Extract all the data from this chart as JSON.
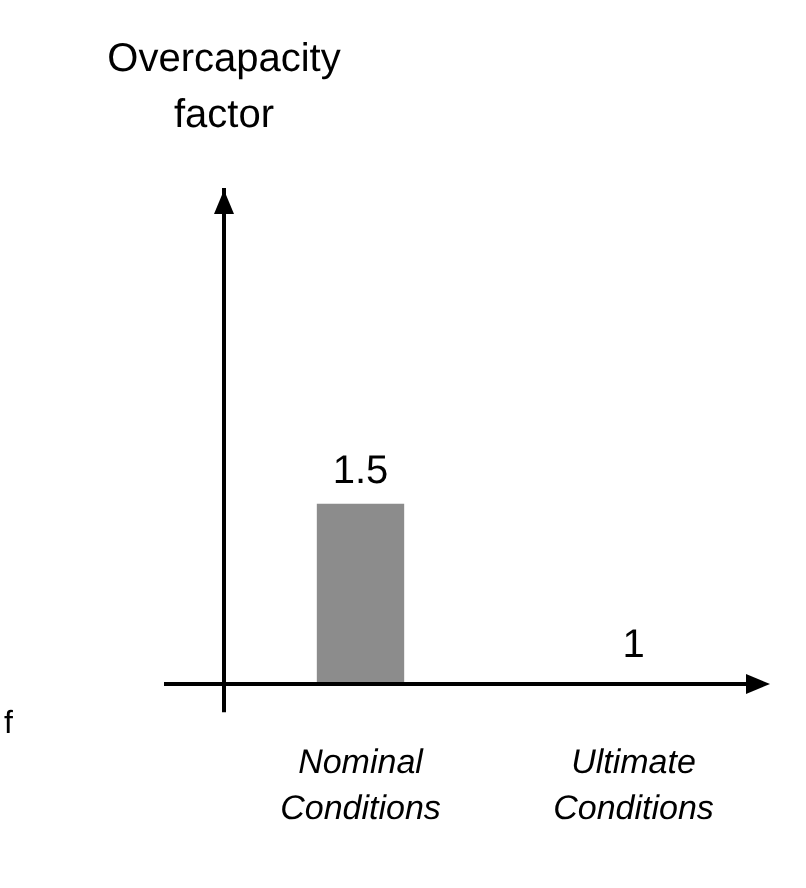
{
  "chart_data": {
    "type": "bar",
    "categories": [
      "Nominal Conditions",
      "Ultimate Conditions"
    ],
    "values": [
      1.5,
      1
    ],
    "colors": [
      "#8c8c8c",
      "#333333"
    ],
    "ylim": [
      1,
      2.37
    ],
    "data_labels": true,
    "tick_labels": "x",
    "grid": false,
    "legend": false,
    "annotations": [
      "Overcapacity factor",
      "f"
    ]
  }
}
